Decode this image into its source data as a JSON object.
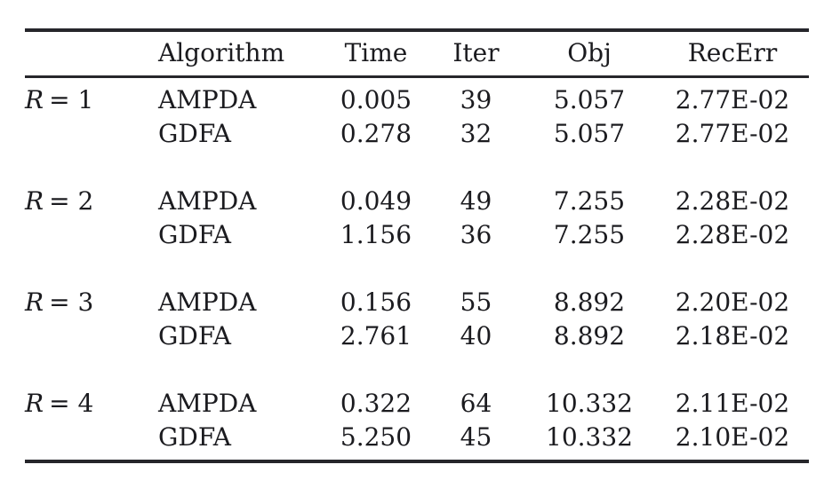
{
  "colors": {
    "background": "#ffffff",
    "text": "#1b1b1f",
    "rule": "#26262b"
  },
  "table": {
    "headers": {
      "algorithm": "Algorithm",
      "time": "Time",
      "iter": "Iter",
      "obj": "Obj",
      "recerr": "RecErr"
    },
    "blocks": [
      {
        "label_var": "R",
        "label_rest": "= 1",
        "rows": [
          {
            "algorithm": "AMPDA",
            "time": "0.005",
            "iter": "39",
            "obj": "5.057",
            "recerr": "2.77E-02"
          },
          {
            "algorithm": "GDFA",
            "time": "0.278",
            "iter": "32",
            "obj": "5.057",
            "recerr": "2.77E-02"
          }
        ]
      },
      {
        "label_var": "R",
        "label_rest": "= 2",
        "rows": [
          {
            "algorithm": "AMPDA",
            "time": "0.049",
            "iter": "49",
            "obj": "7.255",
            "recerr": "2.28E-02"
          },
          {
            "algorithm": "GDFA",
            "time": "1.156",
            "iter": "36",
            "obj": "7.255",
            "recerr": "2.28E-02"
          }
        ]
      },
      {
        "label_var": "R",
        "label_rest": "= 3",
        "rows": [
          {
            "algorithm": "AMPDA",
            "time": "0.156",
            "iter": "55",
            "obj": "8.892",
            "recerr": "2.20E-02"
          },
          {
            "algorithm": "GDFA",
            "time": "2.761",
            "iter": "40",
            "obj": "8.892",
            "recerr": "2.18E-02"
          }
        ]
      },
      {
        "label_var": "R",
        "label_rest": "= 4",
        "rows": [
          {
            "algorithm": "AMPDA",
            "time": "0.322",
            "iter": "64",
            "obj": "10.332",
            "recerr": "2.11E-02"
          },
          {
            "algorithm": "GDFA",
            "time": "5.250",
            "iter": "45",
            "obj": "10.332",
            "recerr": "2.10E-02"
          }
        ]
      }
    ]
  },
  "chart_data": {
    "type": "table",
    "title": "",
    "columns": [
      "",
      "Algorithm",
      "Time",
      "Iter",
      "Obj",
      "RecErr"
    ],
    "rows": [
      [
        "R = 1",
        "AMPDA",
        0.005,
        39,
        5.057,
        "2.77E-02"
      ],
      [
        "R = 1",
        "GDFA",
        0.278,
        32,
        5.057,
        "2.77E-02"
      ],
      [
        "R = 2",
        "AMPDA",
        0.049,
        49,
        7.255,
        "2.28E-02"
      ],
      [
        "R = 2",
        "GDFA",
        1.156,
        36,
        7.255,
        "2.28E-02"
      ],
      [
        "R = 3",
        "AMPDA",
        0.156,
        55,
        8.892,
        "2.20E-02"
      ],
      [
        "R = 3",
        "GDFA",
        2.761,
        40,
        8.892,
        "2.18E-02"
      ],
      [
        "R = 4",
        "AMPDA",
        0.322,
        64,
        10.332,
        "2.11E-02"
      ],
      [
        "R = 4",
        "GDFA",
        5.25,
        45,
        10.332,
        "2.10E-02"
      ]
    ]
  }
}
